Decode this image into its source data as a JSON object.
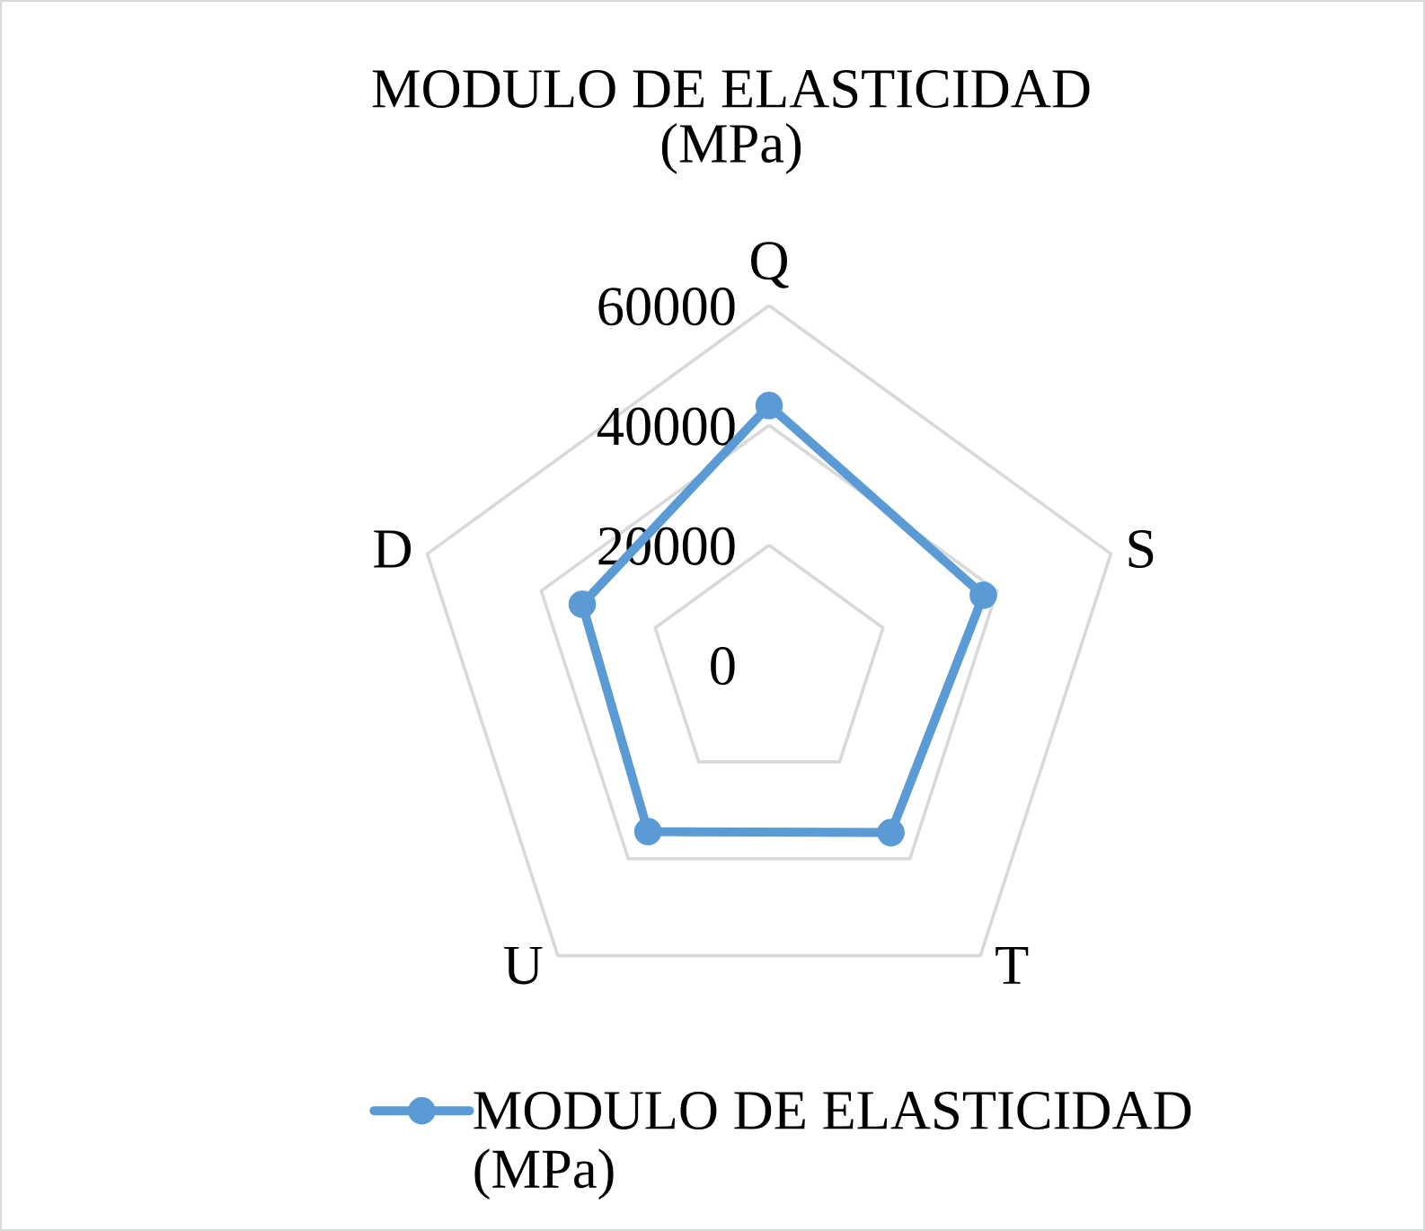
{
  "chart_data": {
    "type": "radar",
    "title": "MODULO DE ELASTICIDAD\n(MPa)",
    "categories": [
      "Q",
      "S",
      "T",
      "U",
      "D"
    ],
    "series": [
      {
        "name": "MODULO DE ELASTICIDAD\n(MPa)",
        "color": "#5b9bd5",
        "values": [
          43300,
          37600,
          34600,
          34400,
          32800
        ]
      }
    ],
    "ylim": [
      0,
      60000
    ],
    "yticks": [
      0,
      20000,
      40000,
      60000
    ],
    "grid": true,
    "legend": "bottom",
    "marker": "circle"
  }
}
